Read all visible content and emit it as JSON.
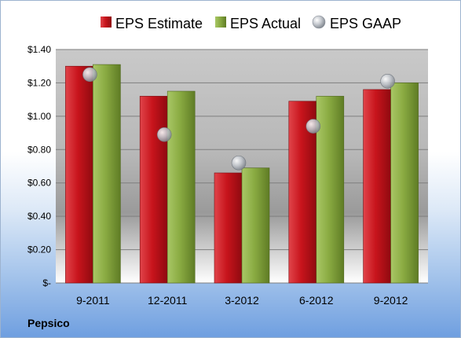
{
  "company": "Pepsico",
  "colors": {
    "estimate": "#c0262d",
    "actual": "#8fb04a",
    "gaap": "#b8bcc2"
  },
  "chart_data": {
    "type": "bar",
    "categories": [
      "9-2011",
      "12-2011",
      "3-2012",
      "6-2012",
      "9-2012"
    ],
    "series": [
      {
        "name": "EPS Estimate",
        "type": "bar",
        "values": [
          1.3,
          1.12,
          0.66,
          1.09,
          1.16
        ]
      },
      {
        "name": "EPS Actual",
        "type": "bar",
        "values": [
          1.31,
          1.15,
          0.69,
          1.12,
          1.2
        ]
      },
      {
        "name": "EPS GAAP",
        "type": "scatter",
        "values": [
          1.25,
          0.89,
          0.72,
          0.94,
          1.21
        ]
      }
    ],
    "y_ticks": [
      {
        "value": 0.0,
        "label": "$-"
      },
      {
        "value": 0.2,
        "label": "$0.20"
      },
      {
        "value": 0.4,
        "label": "$0.40"
      },
      {
        "value": 0.6,
        "label": "$0.60"
      },
      {
        "value": 0.8,
        "label": "$0.80"
      },
      {
        "value": 1.0,
        "label": "$1.00"
      },
      {
        "value": 1.2,
        "label": "$1.20"
      },
      {
        "value": 1.4,
        "label": "$1.40"
      }
    ],
    "ylim": [
      0,
      1.4
    ],
    "grid": true,
    "legend_position": "top"
  }
}
